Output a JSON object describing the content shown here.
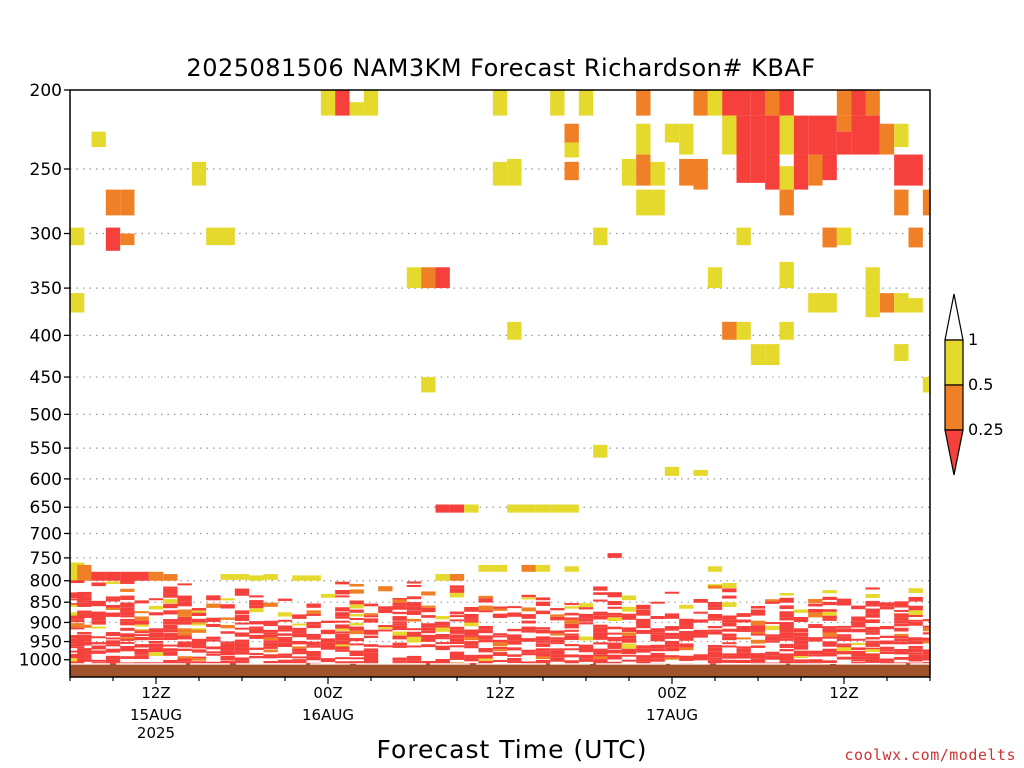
{
  "chart_data": {
    "type": "heatmap",
    "title": "2025081506 NAM3KM Forecast Richardson# KBAF",
    "xlabel": "Forecast Time (UTC)",
    "ylabel": "",
    "credit": "coolwx.com/modelts",
    "x_unit": "forecast hours from 2025-08-15 06Z",
    "xlim": [
      0,
      60
    ],
    "y_scale": "log-pressure",
    "ylim": [
      1050,
      200
    ],
    "yticks": [
      200,
      250,
      300,
      350,
      400,
      450,
      500,
      550,
      600,
      650,
      700,
      750,
      800,
      850,
      900,
      950,
      1000
    ],
    "ytick_labels": [
      "200",
      "250",
      "300",
      "350",
      "400",
      "450",
      "500",
      "550",
      "600",
      "650",
      "700",
      "750",
      "800",
      "850",
      "900",
      "950",
      "1000"
    ],
    "xticks": [
      {
        "hour": 6,
        "label": "12Z",
        "sub": [
          "15AUG",
          "2025"
        ]
      },
      {
        "hour": 18,
        "label": "00Z",
        "sub": [
          "16AUG"
        ]
      },
      {
        "hour": 30,
        "label": "12Z",
        "sub": []
      },
      {
        "hour": 42,
        "label": "00Z",
        "sub": [
          "17AUG"
        ]
      },
      {
        "hour": 54,
        "label": "12Z",
        "sub": []
      }
    ],
    "grid": "dotted horizontal at pressure levels",
    "legend_placement": "right",
    "colorbar": {
      "levels": [
        "1",
        "0.5",
        "0.25"
      ],
      "colors": {
        "above": "#ffffff",
        "high": "#e6d92e",
        "mid": "#f08026",
        "low": "#f5403c"
      }
    },
    "ground_color": "#a0522d",
    "cells": [
      {
        "h": 18,
        "p0": 200,
        "p1": 215,
        "c": "y"
      },
      {
        "h": 19,
        "p0": 200,
        "p1": 215,
        "c": "r"
      },
      {
        "h": 20,
        "p0": 207,
        "p1": 215,
        "c": "y"
      },
      {
        "h": 21,
        "p0": 200,
        "p1": 215,
        "c": "y"
      },
      {
        "h": 30,
        "p0": 200,
        "p1": 215,
        "c": "y"
      },
      {
        "h": 34,
        "p0": 200,
        "p1": 215,
        "c": "y"
      },
      {
        "h": 36,
        "p0": 200,
        "p1": 215,
        "c": "y"
      },
      {
        "h": 40,
        "p0": 200,
        "p1": 215,
        "c": "o"
      },
      {
        "h": 44,
        "p0": 200,
        "p1": 215,
        "c": "o"
      },
      {
        "h": 45,
        "p0": 200,
        "p1": 215,
        "c": "y"
      },
      {
        "h": 46,
        "p0": 200,
        "p1": 215,
        "c": "r"
      },
      {
        "h": 47,
        "p0": 200,
        "p1": 215,
        "c": "r"
      },
      {
        "h": 48,
        "p0": 200,
        "p1": 215,
        "c": "r"
      },
      {
        "h": 49,
        "p0": 200,
        "p1": 215,
        "c": "o"
      },
      {
        "h": 50,
        "p0": 200,
        "p1": 215,
        "c": "r"
      },
      {
        "h": 54,
        "p0": 200,
        "p1": 215,
        "c": "o"
      },
      {
        "h": 55,
        "p0": 200,
        "p1": 215,
        "c": "r"
      },
      {
        "h": 56,
        "p0": 200,
        "p1": 215,
        "c": "o"
      },
      {
        "h": 2,
        "p0": 225,
        "p1": 235,
        "c": "y"
      },
      {
        "h": 35,
        "p0": 220,
        "p1": 232,
        "c": "o"
      },
      {
        "h": 35,
        "p0": 232,
        "p1": 242,
        "c": "y"
      },
      {
        "h": 40,
        "p0": 220,
        "p1": 240,
        "c": "y"
      },
      {
        "h": 42,
        "p0": 220,
        "p1": 232,
        "c": "y"
      },
      {
        "h": 43,
        "p0": 220,
        "p1": 240,
        "c": "y"
      },
      {
        "h": 46,
        "p0": 215,
        "p1": 240,
        "c": "y"
      },
      {
        "h": 47,
        "p0": 215,
        "p1": 260,
        "c": "r"
      },
      {
        "h": 48,
        "p0": 215,
        "p1": 260,
        "c": "r"
      },
      {
        "h": 49,
        "p0": 215,
        "p1": 240,
        "c": "r"
      },
      {
        "h": 50,
        "p0": 215,
        "p1": 240,
        "c": "y"
      },
      {
        "h": 51,
        "p0": 215,
        "p1": 240,
        "c": "r"
      },
      {
        "h": 52,
        "p0": 215,
        "p1": 240,
        "c": "r"
      },
      {
        "h": 53,
        "p0": 215,
        "p1": 240,
        "c": "r"
      },
      {
        "h": 54,
        "p0": 215,
        "p1": 225,
        "c": "o"
      },
      {
        "h": 54,
        "p0": 225,
        "p1": 240,
        "c": "r"
      },
      {
        "h": 55,
        "p0": 215,
        "p1": 240,
        "c": "r"
      },
      {
        "h": 56,
        "p0": 215,
        "p1": 240,
        "c": "r"
      },
      {
        "h": 57,
        "p0": 220,
        "p1": 240,
        "c": "o"
      },
      {
        "h": 58,
        "p0": 220,
        "p1": 235,
        "c": "y"
      },
      {
        "h": 9,
        "p0": 245,
        "p1": 262,
        "c": "y"
      },
      {
        "h": 30,
        "p0": 245,
        "p1": 262,
        "c": "y"
      },
      {
        "h": 31,
        "p0": 243,
        "p1": 262,
        "c": "y"
      },
      {
        "h": 35,
        "p0": 245,
        "p1": 258,
        "c": "o"
      },
      {
        "h": 39,
        "p0": 243,
        "p1": 262,
        "c": "y"
      },
      {
        "h": 40,
        "p0": 240,
        "p1": 262,
        "c": "o"
      },
      {
        "h": 41,
        "p0": 245,
        "p1": 262,
        "c": "y"
      },
      {
        "h": 43,
        "p0": 243,
        "p1": 262,
        "c": "o"
      },
      {
        "h": 44,
        "p0": 243,
        "p1": 265,
        "c": "o"
      },
      {
        "h": 49,
        "p0": 240,
        "p1": 265,
        "c": "r"
      },
      {
        "h": 50,
        "p0": 248,
        "p1": 265,
        "c": "y"
      },
      {
        "h": 51,
        "p0": 240,
        "p1": 265,
        "c": "r"
      },
      {
        "h": 52,
        "p0": 240,
        "p1": 262,
        "c": "o"
      },
      {
        "h": 53,
        "p0": 240,
        "p1": 258,
        "c": "r"
      },
      {
        "h": 58,
        "p0": 240,
        "p1": 262,
        "c": "r"
      },
      {
        "h": 59,
        "p0": 240,
        "p1": 262,
        "c": "r"
      },
      {
        "h": 3,
        "p0": 265,
        "p1": 285,
        "c": "o"
      },
      {
        "h": 4,
        "p0": 265,
        "p1": 285,
        "c": "o"
      },
      {
        "h": 40,
        "p0": 265,
        "p1": 285,
        "c": "y"
      },
      {
        "h": 41,
        "p0": 265,
        "p1": 285,
        "c": "y"
      },
      {
        "h": 50,
        "p0": 265,
        "p1": 285,
        "c": "o"
      },
      {
        "h": 58,
        "p0": 265,
        "p1": 285,
        "c": "o"
      },
      {
        "h": 60,
        "p0": 265,
        "p1": 285,
        "c": "o"
      },
      {
        "h": 0,
        "p0": 295,
        "p1": 310,
        "c": "y"
      },
      {
        "h": 3,
        "p0": 295,
        "p1": 315,
        "c": "r"
      },
      {
        "h": 4,
        "p0": 300,
        "p1": 310,
        "c": "o"
      },
      {
        "h": 10,
        "p0": 295,
        "p1": 310,
        "c": "y"
      },
      {
        "h": 11,
        "p0": 295,
        "p1": 310,
        "c": "y"
      },
      {
        "h": 37,
        "p0": 295,
        "p1": 310,
        "c": "y"
      },
      {
        "h": 47,
        "p0": 295,
        "p1": 310,
        "c": "y"
      },
      {
        "h": 53,
        "p0": 295,
        "p1": 312,
        "c": "o"
      },
      {
        "h": 54,
        "p0": 295,
        "p1": 310,
        "c": "y"
      },
      {
        "h": 59,
        "p0": 295,
        "p1": 312,
        "c": "o"
      },
      {
        "h": 24,
        "p0": 330,
        "p1": 350,
        "c": "y"
      },
      {
        "h": 25,
        "p0": 330,
        "p1": 350,
        "c": "o"
      },
      {
        "h": 26,
        "p0": 330,
        "p1": 350,
        "c": "r"
      },
      {
        "h": 45,
        "p0": 330,
        "p1": 350,
        "c": "y"
      },
      {
        "h": 50,
        "p0": 325,
        "p1": 350,
        "c": "y"
      },
      {
        "h": 56,
        "p0": 330,
        "p1": 380,
        "c": "y"
      },
      {
        "h": 0,
        "p0": 355,
        "p1": 375,
        "c": "y"
      },
      {
        "h": 52,
        "p0": 355,
        "p1": 375,
        "c": "y"
      },
      {
        "h": 53,
        "p0": 355,
        "p1": 375,
        "c": "y"
      },
      {
        "h": 57,
        "p0": 355,
        "p1": 375,
        "c": "o"
      },
      {
        "h": 58,
        "p0": 355,
        "p1": 375,
        "c": "y"
      },
      {
        "h": 59,
        "p0": 360,
        "p1": 375,
        "c": "y"
      },
      {
        "h": 31,
        "p0": 385,
        "p1": 405,
        "c": "y"
      },
      {
        "h": 46,
        "p0": 385,
        "p1": 405,
        "c": "o"
      },
      {
        "h": 47,
        "p0": 385,
        "p1": 405,
        "c": "y"
      },
      {
        "h": 50,
        "p0": 385,
        "p1": 405,
        "c": "y"
      },
      {
        "h": 48,
        "p0": 410,
        "p1": 435,
        "c": "y"
      },
      {
        "h": 49,
        "p0": 410,
        "p1": 435,
        "c": "y"
      },
      {
        "h": 58,
        "p0": 410,
        "p1": 430,
        "c": "y"
      },
      {
        "h": 25,
        "p0": 450,
        "p1": 470,
        "c": "y"
      },
      {
        "h": 60,
        "p0": 450,
        "p1": 470,
        "c": "y"
      },
      {
        "h": 37,
        "p0": 545,
        "p1": 565,
        "c": "y"
      },
      {
        "h": 42,
        "p0": 580,
        "p1": 595,
        "c": "y"
      },
      {
        "h": 44,
        "p0": 585,
        "p1": 595,
        "c": "y"
      },
      {
        "h": 26,
        "p0": 645,
        "p1": 660,
        "c": "r"
      },
      {
        "h": 27,
        "p0": 645,
        "p1": 660,
        "c": "r"
      },
      {
        "h": 28,
        "p0": 645,
        "p1": 660,
        "c": "y"
      },
      {
        "h": 31,
        "p0": 645,
        "p1": 660,
        "c": "y"
      },
      {
        "h": 32,
        "p0": 645,
        "p1": 660,
        "c": "y"
      },
      {
        "h": 33,
        "p0": 645,
        "p1": 660,
        "c": "y"
      },
      {
        "h": 34,
        "p0": 645,
        "p1": 660,
        "c": "y"
      },
      {
        "h": 35,
        "p0": 645,
        "p1": 660,
        "c": "y"
      },
      {
        "h": 38,
        "p0": 740,
        "p1": 750,
        "c": "r"
      },
      {
        "h": 29,
        "p0": 765,
        "p1": 780,
        "c": "y"
      },
      {
        "h": 30,
        "p0": 765,
        "p1": 780,
        "c": "y"
      },
      {
        "h": 32,
        "p0": 765,
        "p1": 780,
        "c": "o"
      },
      {
        "h": 33,
        "p0": 765,
        "p1": 780,
        "c": "y"
      },
      {
        "h": 35,
        "p0": 768,
        "p1": 780,
        "c": "y"
      },
      {
        "h": 45,
        "p0": 768,
        "p1": 780,
        "c": "y"
      },
      {
        "h": 0,
        "p0": 760,
        "p1": 800,
        "c": "y"
      },
      {
        "h": 1,
        "p0": 765,
        "p1": 800,
        "c": "o"
      },
      {
        "h": 2,
        "p0": 780,
        "p1": 800,
        "c": "r"
      },
      {
        "h": 3,
        "p0": 780,
        "p1": 800,
        "c": "r"
      },
      {
        "h": 4,
        "p0": 780,
        "p1": 800,
        "c": "r"
      },
      {
        "h": 5,
        "p0": 780,
        "p1": 800,
        "c": "r"
      },
      {
        "h": 6,
        "p0": 780,
        "p1": 800,
        "c": "o"
      },
      {
        "h": 7,
        "p0": 785,
        "p1": 800,
        "c": "o"
      },
      {
        "h": 11,
        "p0": 785,
        "p1": 798,
        "c": "y"
      },
      {
        "h": 12,
        "p0": 785,
        "p1": 798,
        "c": "y"
      },
      {
        "h": 13,
        "p0": 788,
        "p1": 800,
        "c": "y"
      },
      {
        "h": 14,
        "p0": 785,
        "p1": 798,
        "c": "y"
      },
      {
        "h": 16,
        "p0": 788,
        "p1": 800,
        "c": "y"
      },
      {
        "h": 17,
        "p0": 788,
        "p1": 800,
        "c": "y"
      },
      {
        "h": 26,
        "p0": 785,
        "p1": 800,
        "c": "y"
      },
      {
        "h": 27,
        "p0": 785,
        "p1": 800,
        "c": "o"
      }
    ],
    "low_level_seed": 20250815
  }
}
